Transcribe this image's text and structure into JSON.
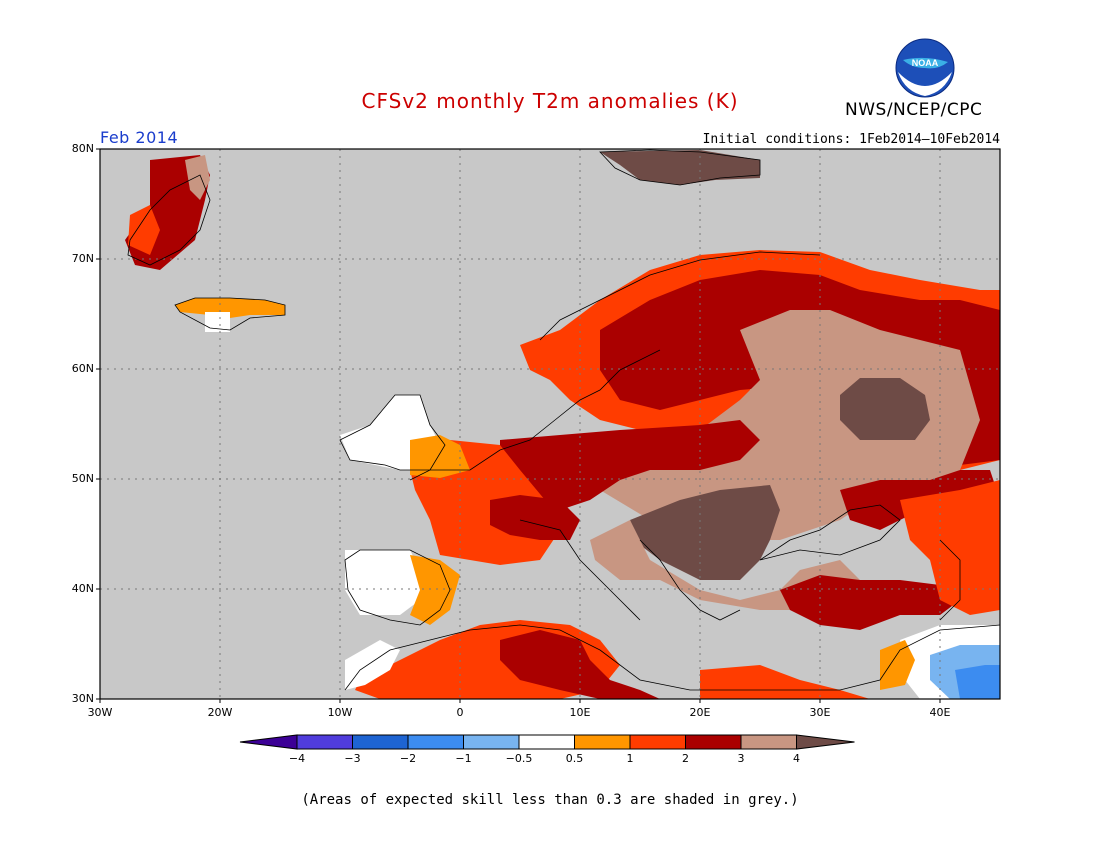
{
  "header": {
    "title": "CFSv2 monthly T2m anomalies (K)",
    "org": "NWS/NCEP/CPC",
    "month": "Feb 2014",
    "initial_conditions": "Initial conditions: 1Feb2014–10Feb2014",
    "logo_text": "NOAA"
  },
  "map": {
    "lat_labels": [
      "80N",
      "70N",
      "60N",
      "50N",
      "40N",
      "30N"
    ],
    "lon_labels": [
      "30W",
      "20W",
      "10W",
      "0",
      "10E",
      "20E",
      "30E",
      "40E"
    ],
    "land_color": "#c8c8c8",
    "grid": true
  },
  "colorbar": {
    "colors": [
      "#3c0096",
      "#503cdc",
      "#1e64d2",
      "#3c8cf0",
      "#78b4f0",
      "#ffffff",
      "#ff9600",
      "#ff3c00",
      "#aa0000",
      "#c89682",
      "#6e4b46"
    ],
    "labels": [
      "−4",
      "−3",
      "−2",
      "−1",
      "−0.5",
      "0.5",
      "1",
      "2",
      "3",
      "4"
    ]
  },
  "footnote": "(Areas of expected skill less than 0.3 are shaded in grey.)",
  "regions": [
    {
      "name": "svalbard",
      "category": "4"
    },
    {
      "name": "greenland-east",
      "category": "3"
    },
    {
      "name": "iceland",
      "category": "1"
    },
    {
      "name": "scandinavia",
      "category": "3"
    },
    {
      "name": "northwest-russia",
      "category": "3"
    },
    {
      "name": "western-russia",
      "category": "4"
    },
    {
      "name": "central-russia",
      "category": ">4"
    },
    {
      "name": "central-europe",
      "category": "3"
    },
    {
      "name": "balkans",
      "category": ">4"
    },
    {
      "name": "france",
      "category": "2"
    },
    {
      "name": "iberia",
      "category": "0.5"
    },
    {
      "name": "north-africa",
      "category": "2"
    },
    {
      "name": "middle-east",
      "category": "-1"
    }
  ]
}
